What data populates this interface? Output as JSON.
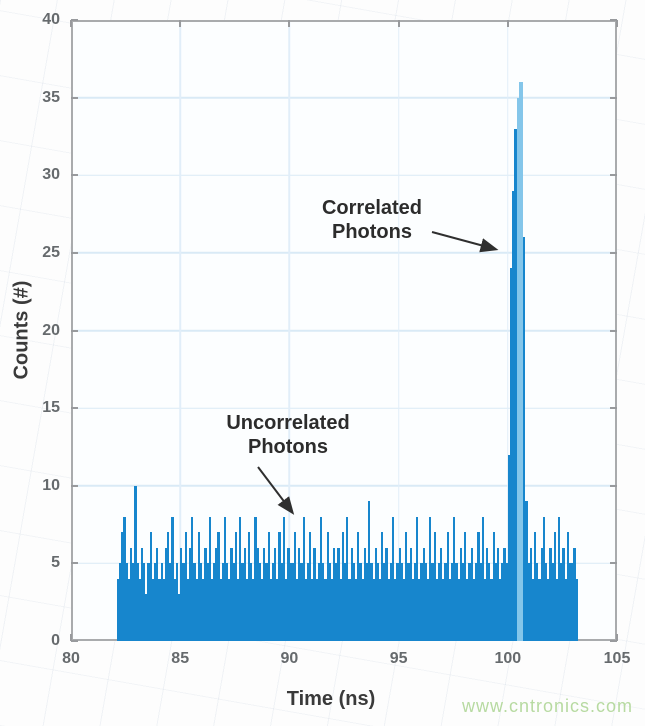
{
  "chart_data": {
    "type": "bar",
    "title": "",
    "xlabel": "Time (ns)",
    "ylabel": "Counts (#)",
    "xlim": [
      80,
      105
    ],
    "ylim": [
      0,
      40
    ],
    "x_ticks": [
      80,
      85,
      90,
      95,
      100,
      105
    ],
    "y_ticks": [
      0,
      5,
      10,
      15,
      20,
      25,
      30,
      35,
      40
    ],
    "grid": true,
    "bar_color": "#1786cd",
    "bar_color_light": "#84c6ea",
    "bin_start": 82.1,
    "bin_width": 0.1,
    "peak": {
      "time_ns": 100.5,
      "count": 36
    },
    "counts": [
      4,
      5,
      7,
      8,
      5,
      4,
      6,
      5,
      10,
      5,
      4,
      6,
      5,
      3,
      5,
      7,
      4,
      5,
      6,
      4,
      5,
      4,
      6,
      7,
      5,
      8,
      4,
      5,
      3,
      6,
      5,
      7,
      4,
      6,
      8,
      5,
      4,
      7,
      5,
      4,
      6,
      5,
      8,
      4,
      5,
      6,
      7,
      4,
      5,
      8,
      5,
      4,
      6,
      5,
      7,
      4,
      8,
      5,
      6,
      4,
      7,
      5,
      4,
      8,
      6,
      5,
      4,
      6,
      5,
      7,
      4,
      5,
      6,
      4,
      7,
      5,
      8,
      4,
      6,
      5,
      5,
      7,
      4,
      6,
      5,
      8,
      4,
      5,
      7,
      4,
      6,
      4,
      5,
      8,
      5,
      4,
      7,
      5,
      4,
      6,
      5,
      6,
      4,
      7,
      5,
      8,
      4,
      6,
      5,
      4,
      7,
      5,
      4,
      6,
      5,
      9,
      5,
      4,
      6,
      5,
      4,
      7,
      5,
      6,
      4,
      5,
      8,
      4,
      5,
      6,
      5,
      4,
      7,
      5,
      6,
      4,
      5,
      8,
      4,
      5,
      6,
      5,
      4,
      8,
      5,
      7,
      4,
      5,
      6,
      4,
      5,
      7,
      4,
      5,
      8,
      5,
      4,
      6,
      5,
      7,
      4,
      5,
      6,
      4,
      5,
      7,
      5,
      8,
      4,
      6,
      5,
      4,
      7,
      5,
      6,
      4,
      5,
      6,
      5,
      12,
      24,
      29,
      33,
      35,
      36,
      36,
      26,
      9,
      5,
      6,
      4,
      7,
      5,
      4,
      6,
      8,
      5,
      4,
      6,
      5,
      7,
      4,
      8,
      5,
      6,
      4,
      7,
      5,
      5,
      6,
      4
    ],
    "light_bin_indices": [
      183,
      184,
      185
    ]
  },
  "annotations": {
    "correlated": {
      "line1": "Correlated",
      "line2": "Photons"
    },
    "uncorrelated": {
      "line1": "Uncorrelated",
      "line2": "Photons"
    }
  },
  "watermark": {
    "text": "www.cntronics.com",
    "color": "#b7daa1"
  }
}
